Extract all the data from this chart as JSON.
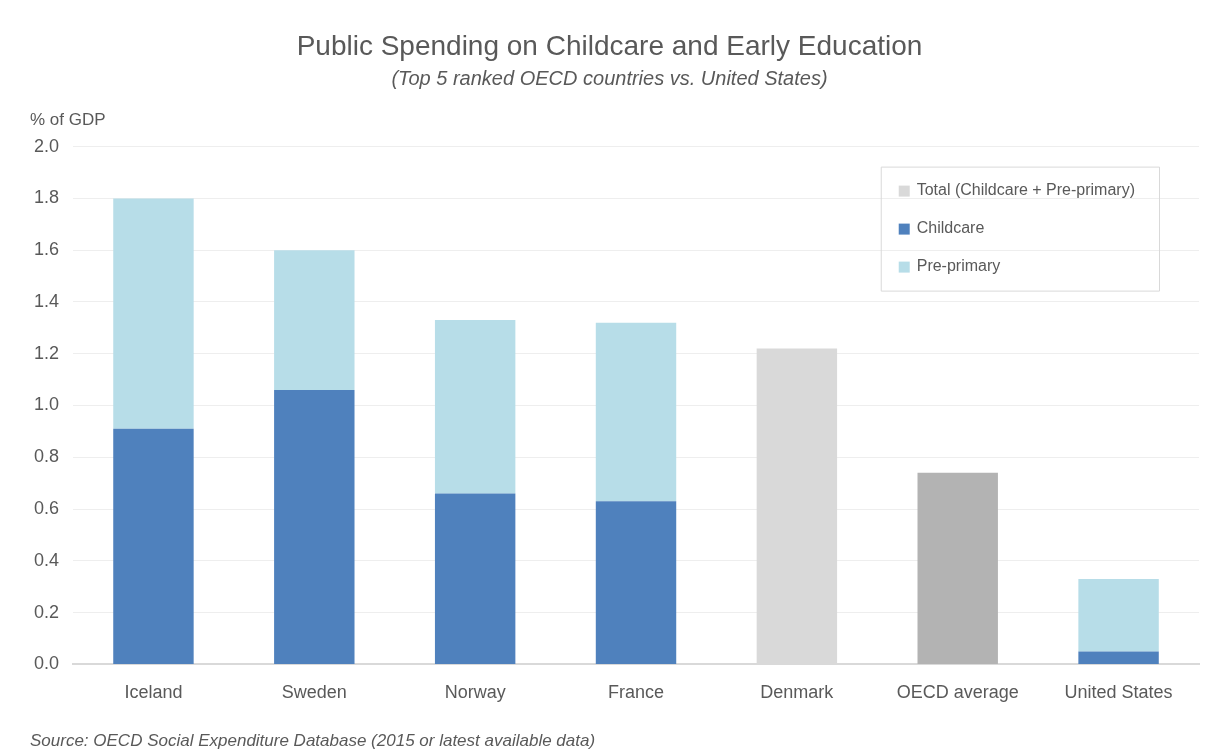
{
  "chart_data": {
    "type": "bar",
    "title": "Public Spending on Childcare and Early Education",
    "subtitle": "(Top 5 ranked OECD countries vs. United States)",
    "ylabel": "% of GDP",
    "categories": [
      "Iceland",
      "Sweden",
      "Norway",
      "France",
      "Denmark",
      "OECD average",
      "United States"
    ],
    "series": [
      {
        "name": "Total (Childcare + Pre-primary)",
        "color": "#d9d9d9",
        "colors": [
          "#d9d9d9",
          "#d9d9d9",
          "#d9d9d9",
          "#d9d9d9",
          "#d9d9d9",
          "#b3b3b3",
          "#d9d9d9"
        ],
        "values": [
          null,
          null,
          null,
          null,
          1.22,
          0.74,
          null
        ]
      },
      {
        "name": "Childcare",
        "color": "#4f81bd",
        "values": [
          0.91,
          1.06,
          0.66,
          0.63,
          null,
          null,
          0.05
        ]
      },
      {
        "name": "Pre-primary",
        "color": "#b7dde8",
        "values": [
          0.89,
          0.54,
          0.67,
          0.69,
          null,
          null,
          0.28
        ]
      }
    ],
    "stacked": true,
    "ylim": [
      0,
      2
    ],
    "yticks": [
      {
        "value": 0,
        "label": "0.0"
      },
      {
        "value": 0.2,
        "label": "0.2"
      },
      {
        "value": 0.4,
        "label": "0.4"
      },
      {
        "value": 0.6,
        "label": "0.6"
      },
      {
        "value": 0.8,
        "label": "0.8"
      },
      {
        "value": 1,
        "label": "1.0"
      },
      {
        "value": 1.2,
        "label": "1.2"
      },
      {
        "value": 1.4,
        "label": "1.4"
      },
      {
        "value": 1.6,
        "label": "1.6"
      },
      {
        "value": 1.8,
        "label": "1.8"
      },
      {
        "value": 2,
        "label": "2.0"
      }
    ],
    "grid": "y",
    "legend": "top right",
    "annotations": [
      "Source: OECD Social Expenditure Database (2015 or latest available data)"
    ]
  }
}
